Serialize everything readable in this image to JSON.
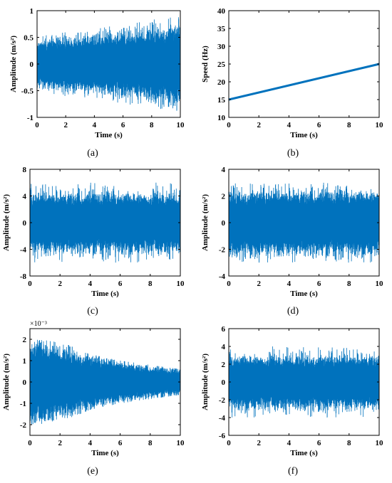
{
  "figure": {
    "colors": {
      "signal": "#0072BD",
      "axis": "#000000"
    }
  },
  "chart_data": [
    {
      "id": "a",
      "type": "line",
      "caption": "(a)",
      "xlabel": "Time (s)",
      "ylabel": "Amplitude (m/s²)",
      "xlim": [
        0,
        10
      ],
      "ylim": [
        -1,
        1
      ],
      "xticks": [
        0,
        2,
        4,
        6,
        8,
        10
      ],
      "yticks": [
        -1,
        -0.5,
        0,
        0.5,
        1
      ],
      "ytick_labels": [
        "-1",
        "-0.5",
        "0",
        "0.5",
        "1"
      ],
      "y_exponent_label": "",
      "series": [
        {
          "kind": "noise_envelope",
          "x": [
            0,
            2,
            4,
            6,
            8,
            10
          ],
          "amplitude": [
            0.3,
            0.33,
            0.36,
            0.4,
            0.45,
            0.5
          ],
          "peak": [
            0.55,
            0.6,
            0.65,
            0.75,
            0.85,
            0.88
          ]
        }
      ]
    },
    {
      "id": "b",
      "type": "line",
      "caption": "(b)",
      "xlabel": "Time (s)",
      "ylabel": "Speed (Hz)",
      "xlim": [
        0,
        10
      ],
      "ylim": [
        10,
        40
      ],
      "xticks": [
        0,
        2,
        4,
        6,
        8,
        10
      ],
      "yticks": [
        10,
        15,
        20,
        25,
        30,
        35,
        40
      ],
      "ytick_labels": [
        "10",
        "15",
        "20",
        "25",
        "30",
        "35",
        "40"
      ],
      "y_exponent_label": "",
      "series": [
        {
          "kind": "line",
          "x": [
            0,
            10
          ],
          "y": [
            15,
            25
          ]
        }
      ]
    },
    {
      "id": "c",
      "type": "line",
      "caption": "(c)",
      "xlabel": "Time (s)",
      "ylabel": "Amplitude (m/s²)",
      "xlim": [
        0,
        10
      ],
      "ylim": [
        -8,
        8
      ],
      "xticks": [
        0,
        2,
        4,
        6,
        8,
        10
      ],
      "yticks": [
        -8,
        -4,
        0,
        4,
        8
      ],
      "ytick_labels": [
        "-8",
        "-4",
        "0",
        "4",
        "8"
      ],
      "y_exponent_label": "",
      "series": [
        {
          "kind": "noise_envelope",
          "x": [
            0,
            10
          ],
          "amplitude": [
            3,
            3
          ],
          "peak": [
            6,
            6
          ]
        }
      ]
    },
    {
      "id": "d",
      "type": "line",
      "caption": "(d)",
      "xlabel": "Time (s)",
      "ylabel": "Amplitude (m/s²)",
      "xlim": [
        0,
        10
      ],
      "ylim": [
        -4,
        4
      ],
      "xticks": [
        0,
        2,
        4,
        6,
        8,
        10
      ],
      "yticks": [
        -4,
        -2,
        0,
        2,
        4
      ],
      "ytick_labels": [
        "-4",
        "-2",
        "0",
        "2",
        "4"
      ],
      "y_exponent_label": "",
      "series": [
        {
          "kind": "noise_envelope",
          "x": [
            0,
            10
          ],
          "amplitude": [
            1.6,
            1.6
          ],
          "peak": [
            3.0,
            3.0
          ]
        }
      ]
    },
    {
      "id": "e",
      "type": "line",
      "caption": "(e)",
      "xlabel": "Time (s)",
      "ylabel": "Amplitude (m/s²)",
      "xlim": [
        0,
        10
      ],
      "ylim": [
        -2.5,
        2.5
      ],
      "xticks": [
        0,
        2,
        4,
        6,
        8,
        10
      ],
      "yticks": [
        -2,
        -1,
        0,
        1,
        2
      ],
      "ytick_labels": [
        "-2",
        "-1",
        "0",
        "1",
        "2"
      ],
      "y_exponent_label": "×10⁻³",
      "series": [
        {
          "kind": "noise_envelope",
          "x": [
            0,
            2,
            4,
            6,
            8,
            10
          ],
          "amplitude": [
            1.4,
            1.1,
            0.85,
            0.65,
            0.5,
            0.4
          ],
          "peak": [
            2.0,
            1.9,
            1.3,
            1.0,
            0.8,
            0.6
          ]
        }
      ]
    },
    {
      "id": "f",
      "type": "line",
      "caption": "(f)",
      "xlabel": "Time (s)",
      "ylabel": "Amplitude (m/s²)",
      "xlim": [
        0,
        10
      ],
      "ylim": [
        -6,
        6
      ],
      "xticks": [
        0,
        2,
        4,
        6,
        8,
        10
      ],
      "yticks": [
        -6,
        -4,
        -2,
        0,
        2,
        4,
        6
      ],
      "ytick_labels": [
        "-6",
        "-4",
        "-2",
        "0",
        "2",
        "4",
        "6"
      ],
      "y_exponent_label": "",
      "series": [
        {
          "kind": "noise_envelope",
          "x": [
            0,
            10
          ],
          "amplitude": [
            2.0,
            2.0
          ],
          "peak": [
            4.0,
            4.0
          ]
        }
      ]
    }
  ]
}
